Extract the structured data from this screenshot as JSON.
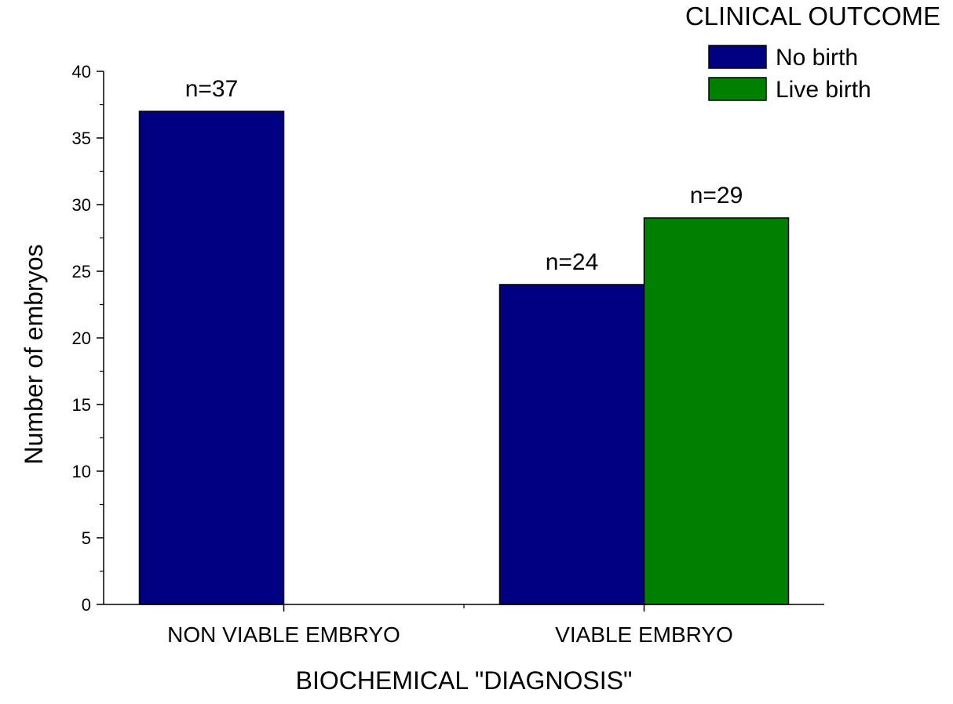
{
  "chart_data": {
    "type": "bar",
    "title": "",
    "xlabel": "BIOCHEMICAL \"DIAGNOSIS\"",
    "ylabel": "Number of embryos",
    "categories": [
      "NON VIABLE EMBRYO",
      "VIABLE EMBRYO"
    ],
    "series": [
      {
        "name": "No birth",
        "color": "#000080",
        "values": [
          37,
          24
        ],
        "labels": [
          "n=37",
          "n=24"
        ]
      },
      {
        "name": "Live birth",
        "color": "#008000",
        "values": [
          null,
          29
        ],
        "labels": [
          "",
          "n=29"
        ]
      }
    ],
    "ylim": [
      0,
      40
    ],
    "yticks": [
      0,
      5,
      10,
      15,
      20,
      25,
      30,
      35,
      40
    ],
    "grid": false,
    "legend": {
      "title": "CLINICAL OUTCOME",
      "position": "top-right"
    }
  }
}
